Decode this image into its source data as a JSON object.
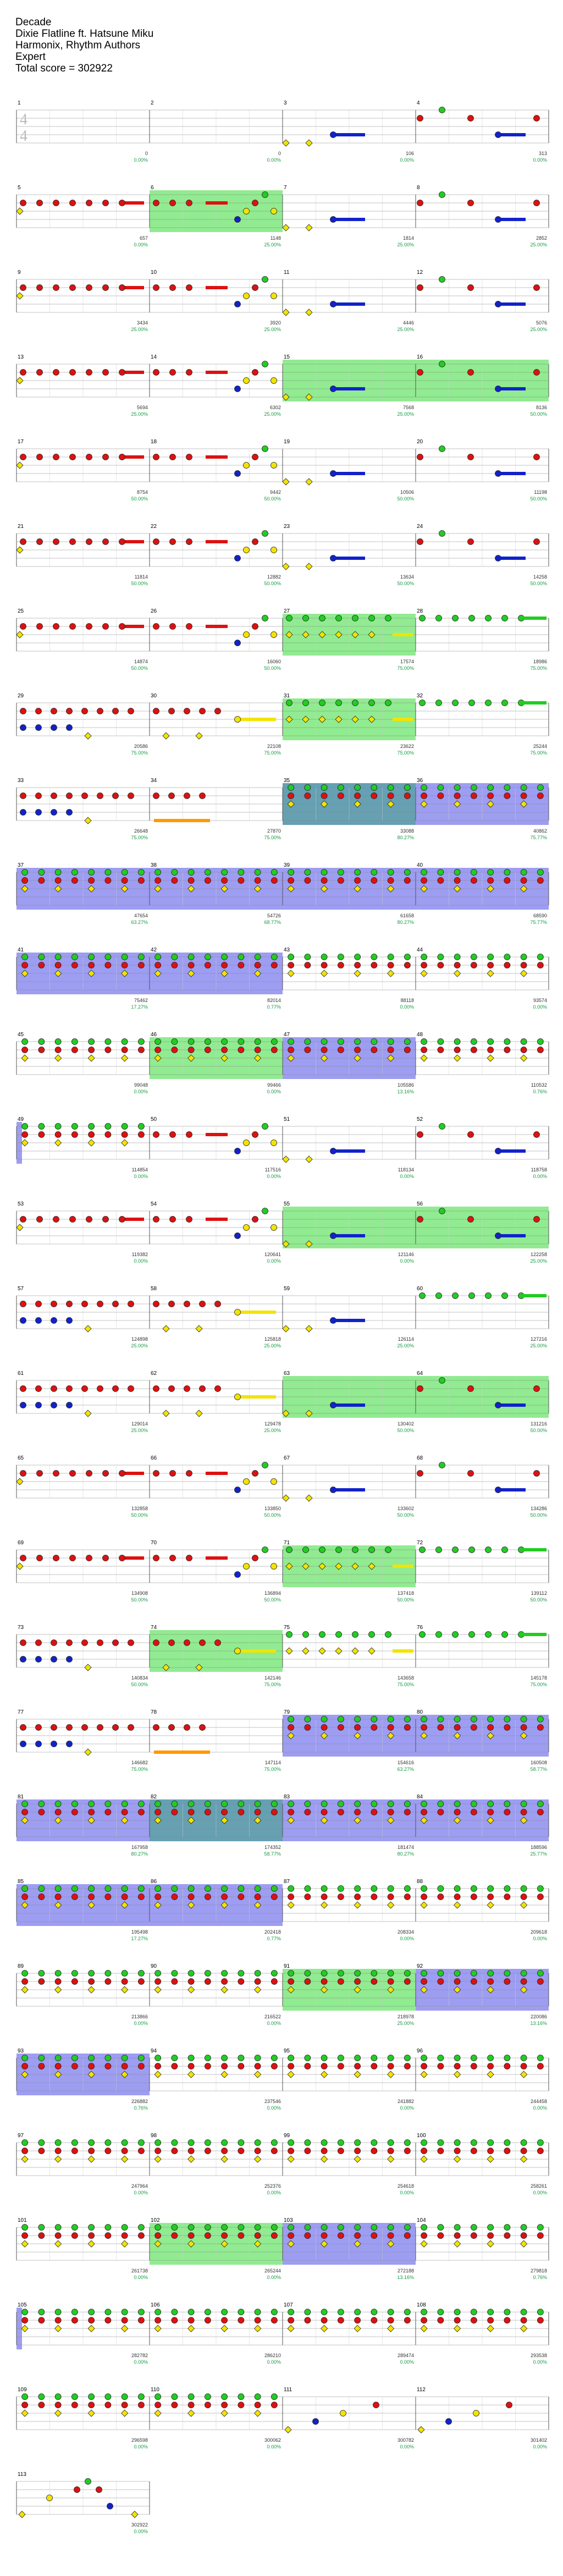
{
  "song": {
    "title": "Decade",
    "artist": "Dixie Flatline ft. Hatsune Miku",
    "charter": "Harmonix, Rhythm Authors",
    "difficulty": "Expert",
    "total_score": "Total score = 302922"
  },
  "time_signature": "4/4",
  "colors": {
    "green": "#22cc22",
    "red": "#dd1111",
    "yellow": "#f2e400",
    "blue": "#1122cc",
    "orange": "#ff9900",
    "star_zone": "#7ee87e",
    "solo_zone": "#8c8cf0",
    "overlap_zone": "#4a8fa6",
    "staff_line": "#888888"
  },
  "rows": [
    {
      "measures": [
        {
          "num": "1",
          "score": "0",
          "pct": "0.00%",
          "notes": "",
          "zone": ""
        },
        {
          "num": "2",
          "score": "0",
          "pct": "0.00%",
          "notes": "",
          "zone": ""
        },
        {
          "num": "3",
          "score": "106",
          "pct": "0.00%",
          "notes": "openA",
          "zone": ""
        },
        {
          "num": "4",
          "score": "313",
          "pct": "0.00%",
          "notes": "chordA",
          "zone": ""
        }
      ]
    },
    {
      "measures": [
        {
          "num": "5",
          "score": "657",
          "pct": "0.00%",
          "notes": "redrun",
          "zone": ""
        },
        {
          "num": "6",
          "score": "1148",
          "pct": "25.00%",
          "notes": "climb",
          "zone": "star"
        },
        {
          "num": "7",
          "score": "1814",
          "pct": "25.00%",
          "notes": "openA",
          "zone": ""
        },
        {
          "num": "8",
          "score": "2852",
          "pct": "25.00%",
          "notes": "chordA",
          "zone": ""
        }
      ]
    },
    {
      "measures": [
        {
          "num": "9",
          "score": "3434",
          "pct": "25.00%",
          "notes": "redrun",
          "zone": ""
        },
        {
          "num": "10",
          "score": "3920",
          "pct": "25.00%",
          "notes": "climb",
          "zone": ""
        },
        {
          "num": "11",
          "score": "4446",
          "pct": "25.00%",
          "notes": "openA",
          "zone": ""
        },
        {
          "num": "12",
          "score": "5076",
          "pct": "25.00%",
          "notes": "chordA",
          "zone": ""
        }
      ]
    },
    {
      "measures": [
        {
          "num": "13",
          "score": "5694",
          "pct": "25.00%",
          "notes": "redrun",
          "zone": ""
        },
        {
          "num": "14",
          "score": "6302",
          "pct": "25.00%",
          "notes": "climb",
          "zone": ""
        },
        {
          "num": "15",
          "score": "7568",
          "pct": "25.00%",
          "notes": "openA",
          "zone": "star"
        },
        {
          "num": "16",
          "score": "8136",
          "pct": "50.00%",
          "notes": "chordA",
          "zone": "star"
        }
      ]
    },
    {
      "measures": [
        {
          "num": "17",
          "score": "8754",
          "pct": "50.00%",
          "notes": "redrun",
          "zone": ""
        },
        {
          "num": "18",
          "score": "9442",
          "pct": "50.00%",
          "notes": "climb",
          "zone": ""
        },
        {
          "num": "19",
          "score": "10506",
          "pct": "50.00%",
          "notes": "openA",
          "zone": ""
        },
        {
          "num": "20",
          "score": "11198",
          "pct": "50.00%",
          "notes": "chordA",
          "zone": ""
        }
      ]
    },
    {
      "measures": [
        {
          "num": "21",
          "score": "11814",
          "pct": "50.00%",
          "notes": "redrun",
          "zone": ""
        },
        {
          "num": "22",
          "score": "12882",
          "pct": "50.00%",
          "notes": "climb",
          "zone": ""
        },
        {
          "num": "23",
          "score": "13634",
          "pct": "50.00%",
          "notes": "openA",
          "zone": ""
        },
        {
          "num": "24",
          "score": "14258",
          "pct": "50.00%",
          "notes": "chordA",
          "zone": ""
        }
      ]
    },
    {
      "measures": [
        {
          "num": "25",
          "score": "14874",
          "pct": "50.00%",
          "notes": "redrun",
          "zone": ""
        },
        {
          "num": "26",
          "score": "16060",
          "pct": "50.00%",
          "notes": "climb",
          "zone": ""
        },
        {
          "num": "27",
          "score": "17574",
          "pct": "75.00%",
          "notes": "yellowrun",
          "zone": "star"
        },
        {
          "num": "28",
          "score": "18986",
          "pct": "75.00%",
          "notes": "greenrun",
          "zone": ""
        }
      ]
    },
    {
      "measures": [
        {
          "num": "29",
          "score": "20586",
          "pct": "75.00%",
          "notes": "mixA",
          "zone": ""
        },
        {
          "num": "30",
          "score": "22108",
          "pct": "75.00%",
          "notes": "mixB",
          "zone": ""
        },
        {
          "num": "31",
          "score": "23622",
          "pct": "75.00%",
          "notes": "yellowrun",
          "zone": "star"
        },
        {
          "num": "32",
          "score": "25244",
          "pct": "75.00%",
          "notes": "greenrun",
          "zone": ""
        }
      ]
    },
    {
      "measures": [
        {
          "num": "33",
          "score": "26648",
          "pct": "75.00%",
          "notes": "mixA",
          "zone": ""
        },
        {
          "num": "34",
          "score": "27870",
          "pct": "75.00%",
          "notes": "orangehold",
          "zone": ""
        },
        {
          "num": "35",
          "score": "33088",
          "pct": "80.27%",
          "notes": "chord3",
          "zone": "overlap"
        },
        {
          "num": "36",
          "score": "40862",
          "pct": "75.77%",
          "notes": "chord3",
          "zone": "solo"
        }
      ]
    },
    {
      "measures": [
        {
          "num": "37",
          "score": "47654",
          "pct": "63.27%",
          "notes": "chord3",
          "zone": "solo"
        },
        {
          "num": "38",
          "score": "54726",
          "pct": "68.77%",
          "notes": "chord3",
          "zone": "solo"
        },
        {
          "num": "39",
          "score": "61658",
          "pct": "80.27%",
          "notes": "chord3",
          "zone": "solo"
        },
        {
          "num": "40",
          "score": "68590",
          "pct": "75.77%",
          "notes": "chord3",
          "zone": "solo"
        }
      ]
    },
    {
      "measures": [
        {
          "num": "41",
          "score": "75462",
          "pct": "17.27%",
          "notes": "chord3",
          "zone": "solo"
        },
        {
          "num": "42",
          "score": "82014",
          "pct": "0.77%",
          "notes": "chord3",
          "zone": "solo"
        },
        {
          "num": "43",
          "score": "88118",
          "pct": "0.00%",
          "notes": "chord3",
          "zone": ""
        },
        {
          "num": "44",
          "score": "93574",
          "pct": "0.00%",
          "notes": "chord3",
          "zone": ""
        }
      ]
    },
    {
      "measures": [
        {
          "num": "45",
          "score": "99048",
          "pct": "0.00%",
          "notes": "chord3",
          "zone": ""
        },
        {
          "num": "46",
          "score": "99466",
          "pct": "0.00%",
          "notes": "chord3",
          "zone": "star"
        },
        {
          "num": "47",
          "score": "105586",
          "pct": "13.16%",
          "notes": "chord3",
          "zone": "solo"
        },
        {
          "num": "48",
          "score": "110532",
          "pct": "0.76%",
          "notes": "chord3",
          "zone": ""
        }
      ]
    },
    {
      "measures": [
        {
          "num": "49",
          "score": "114854",
          "pct": "0.00%",
          "notes": "chord3",
          "zone": "solo-edge"
        },
        {
          "num": "50",
          "score": "117516",
          "pct": "0.00%",
          "notes": "climb",
          "zone": ""
        },
        {
          "num": "51",
          "score": "118134",
          "pct": "0.00%",
          "notes": "openA",
          "zone": ""
        },
        {
          "num": "52",
          "score": "118758",
          "pct": "0.00%",
          "notes": "chordA",
          "zone": ""
        }
      ]
    },
    {
      "measures": [
        {
          "num": "53",
          "score": "119382",
          "pct": "0.00%",
          "notes": "redrun",
          "zone": ""
        },
        {
          "num": "54",
          "score": "120641",
          "pct": "0.00%",
          "notes": "climb",
          "zone": ""
        },
        {
          "num": "55",
          "score": "121146",
          "pct": "0.00%",
          "notes": "openA",
          "zone": "star"
        },
        {
          "num": "56",
          "score": "122258",
          "pct": "25.00%",
          "notes": "chordA",
          "zone": "star"
        }
      ]
    },
    {
      "measures": [
        {
          "num": "57",
          "score": "124898",
          "pct": "25.00%",
          "notes": "mixA",
          "zone": ""
        },
        {
          "num": "58",
          "score": "125818",
          "pct": "25.00%",
          "notes": "mixB",
          "zone": ""
        },
        {
          "num": "59",
          "score": "126114",
          "pct": "25.00%",
          "notes": "openA",
          "zone": ""
        },
        {
          "num": "60",
          "score": "127216",
          "pct": "25.00%",
          "notes": "greenrun",
          "zone": ""
        }
      ]
    },
    {
      "measures": [
        {
          "num": "61",
          "score": "129014",
          "pct": "25.00%",
          "notes": "mixA",
          "zone": ""
        },
        {
          "num": "62",
          "score": "129478",
          "pct": "25.00%",
          "notes": "mixB",
          "zone": ""
        },
        {
          "num": "63",
          "score": "130402",
          "pct": "50.00%",
          "notes": "openA",
          "zone": "star"
        },
        {
          "num": "64",
          "score": "131216",
          "pct": "50.00%",
          "notes": "chordA",
          "zone": "star"
        }
      ]
    },
    {
      "measures": [
        {
          "num": "65",
          "score": "132858",
          "pct": "50.00%",
          "notes": "redrun",
          "zone": ""
        },
        {
          "num": "66",
          "score": "133850",
          "pct": "50.00%",
          "notes": "climb",
          "zone": ""
        },
        {
          "num": "67",
          "score": "133602",
          "pct": "50.00%",
          "notes": "openA",
          "zone": ""
        },
        {
          "num": "68",
          "score": "134286",
          "pct": "50.00%",
          "notes": "chordA",
          "zone": ""
        }
      ]
    },
    {
      "measures": [
        {
          "num": "69",
          "score": "134908",
          "pct": "50.00%",
          "notes": "redrun",
          "zone": ""
        },
        {
          "num": "70",
          "score": "136894",
          "pct": "50.00%",
          "notes": "climb",
          "zone": ""
        },
        {
          "num": "71",
          "score": "137418",
          "pct": "50.00%",
          "notes": "yellowrun",
          "zone": "star"
        },
        {
          "num": "72",
          "score": "139112",
          "pct": "50.00%",
          "notes": "greenrun",
          "zone": ""
        }
      ]
    },
    {
      "measures": [
        {
          "num": "73",
          "score": "140834",
          "pct": "50.00%",
          "notes": "mixA",
          "zone": ""
        },
        {
          "num": "74",
          "score": "142146",
          "pct": "75.00%",
          "notes": "mixB",
          "zone": "star"
        },
        {
          "num": "75",
          "score": "143658",
          "pct": "75.00%",
          "notes": "yellowrun",
          "zone": ""
        },
        {
          "num": "76",
          "score": "145178",
          "pct": "75.00%",
          "notes": "greenrun",
          "zone": ""
        }
      ]
    },
    {
      "measures": [
        {
          "num": "77",
          "score": "146682",
          "pct": "75.00%",
          "notes": "mixA",
          "zone": ""
        },
        {
          "num": "78",
          "score": "147114",
          "pct": "75.00%",
          "notes": "orangehold",
          "zone": ""
        },
        {
          "num": "79",
          "score": "154616",
          "pct": "63.27%",
          "notes": "chord3",
          "zone": "solo"
        },
        {
          "num": "80",
          "score": "160508",
          "pct": "58.77%",
          "notes": "chord3",
          "zone": "solo"
        }
      ]
    },
    {
      "measures": [
        {
          "num": "81",
          "score": "167958",
          "pct": "80.27%",
          "notes": "chord3",
          "zone": "solo"
        },
        {
          "num": "82",
          "score": "174352",
          "pct": "58.77%",
          "notes": "chord3",
          "zone": "overlap"
        },
        {
          "num": "83",
          "score": "181474",
          "pct": "80.27%",
          "notes": "chord3",
          "zone": "solo"
        },
        {
          "num": "84",
          "score": "188596",
          "pct": "25.77%",
          "notes": "chord3",
          "zone": "solo"
        }
      ]
    },
    {
      "measures": [
        {
          "num": "85",
          "score": "195498",
          "pct": "17.27%",
          "notes": "chord3",
          "zone": "solo"
        },
        {
          "num": "86",
          "score": "202418",
          "pct": "0.77%",
          "notes": "chord3",
          "zone": "solo"
        },
        {
          "num": "87",
          "score": "208334",
          "pct": "0.00%",
          "notes": "chord3",
          "zone": ""
        },
        {
          "num": "88",
          "score": "209618",
          "pct": "0.00%",
          "notes": "chord3",
          "zone": ""
        }
      ]
    },
    {
      "measures": [
        {
          "num": "89",
          "score": "213866",
          "pct": "0.00%",
          "notes": "chord3",
          "zone": ""
        },
        {
          "num": "90",
          "score": "216522",
          "pct": "0.00%",
          "notes": "chord3",
          "zone": ""
        },
        {
          "num": "91",
          "score": "218978",
          "pct": "25.00%",
          "notes": "chord3",
          "zone": "star"
        },
        {
          "num": "92",
          "score": "220086",
          "pct": "13.16%",
          "notes": "chord3",
          "zone": "solo"
        }
      ]
    },
    {
      "measures": [
        {
          "num": "93",
          "score": "226882",
          "pct": "0.76%",
          "notes": "chord3",
          "zone": "solo"
        },
        {
          "num": "94",
          "score": "237546",
          "pct": "0.00%",
          "notes": "chord3",
          "zone": ""
        },
        {
          "num": "95",
          "score": "241882",
          "pct": "0.00%",
          "notes": "chord3",
          "zone": ""
        },
        {
          "num": "96",
          "score": "244458",
          "pct": "0.00%",
          "notes": "chord3",
          "zone": ""
        }
      ]
    },
    {
      "measures": [
        {
          "num": "97",
          "score": "247964",
          "pct": "0.00%",
          "notes": "chord3",
          "zone": ""
        },
        {
          "num": "98",
          "score": "252376",
          "pct": "0.00%",
          "notes": "chord3",
          "zone": ""
        },
        {
          "num": "99",
          "score": "254618",
          "pct": "0.00%",
          "notes": "chord3",
          "zone": ""
        },
        {
          "num": "100",
          "score": "258261",
          "pct": "0.00%",
          "notes": "chord3",
          "zone": ""
        }
      ]
    },
    {
      "measures": [
        {
          "num": "101",
          "score": "261738",
          "pct": "0.00%",
          "notes": "chord3",
          "zone": ""
        },
        {
          "num": "102",
          "score": "265244",
          "pct": "0.00%",
          "notes": "chord3",
          "zone": "star"
        },
        {
          "num": "103",
          "score": "272188",
          "pct": "13.16%",
          "notes": "chord3",
          "zone": "solo"
        },
        {
          "num": "104",
          "score": "279818",
          "pct": "0.76%",
          "notes": "chord3",
          "zone": ""
        }
      ]
    },
    {
      "measures": [
        {
          "num": "105",
          "score": "282782",
          "pct": "0.00%",
          "notes": "chord3",
          "zone": "solo-edge"
        },
        {
          "num": "106",
          "score": "286210",
          "pct": "0.00%",
          "notes": "chord3",
          "zone": ""
        },
        {
          "num": "107",
          "score": "289474",
          "pct": "0.00%",
          "notes": "chord3",
          "zone": ""
        },
        {
          "num": "108",
          "score": "293538",
          "pct": "0.00%",
          "notes": "chord3",
          "zone": ""
        }
      ]
    },
    {
      "measures": [
        {
          "num": "109",
          "score": "296598",
          "pct": "0.00%",
          "notes": "chord3",
          "zone": ""
        },
        {
          "num": "110",
          "score": "300062",
          "pct": "0.00%",
          "notes": "chord3",
          "zone": ""
        },
        {
          "num": "111",
          "score": "300782",
          "pct": "0.00%",
          "notes": "sparse",
          "zone": ""
        },
        {
          "num": "112",
          "score": "301402",
          "pct": "0.00%",
          "notes": "sparse",
          "zone": ""
        }
      ]
    },
    {
      "measures": [
        {
          "num": "113",
          "score": "302922",
          "pct": "0.00%",
          "notes": "finale",
          "zone": ""
        }
      ]
    }
  ]
}
